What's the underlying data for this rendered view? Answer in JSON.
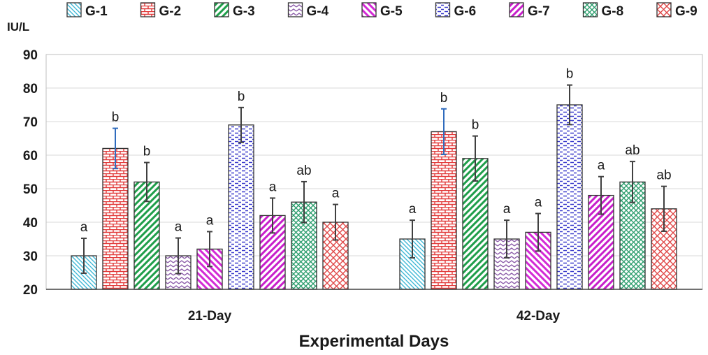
{
  "chart_data": {
    "type": "bar",
    "title": "",
    "ylabel": "IU/L",
    "xlabel": "Experimental Days",
    "ylim": [
      20,
      90
    ],
    "yticks": [
      20,
      30,
      40,
      50,
      60,
      70,
      80,
      90
    ],
    "grid": true,
    "legend_position": "top",
    "categories": [
      "21-Day",
      "42-Day"
    ],
    "series": [
      {
        "name": "G-1",
        "color": "#3fb8d6",
        "pattern": "diag-down",
        "values": [
          30,
          35
        ],
        "errors": [
          5.2,
          5.6
        ],
        "letters": [
          "a",
          "a"
        ],
        "error_color": "#404040"
      },
      {
        "name": "G-2",
        "color": "#e23a3a",
        "pattern": "brick",
        "values": [
          62,
          67
        ],
        "errors": [
          6,
          6.8
        ],
        "letters": [
          "b",
          "b"
        ],
        "error_color": "#2f6bbd"
      },
      {
        "name": "G-3",
        "color": "#1f9e4a",
        "pattern": "wide-up",
        "values": [
          52,
          59
        ],
        "errors": [
          5.8,
          6.7
        ],
        "letters": [
          "b",
          "b"
        ],
        "error_color": "#404040"
      },
      {
        "name": "G-4",
        "color": "#8a5aa8",
        "pattern": "zigzag",
        "values": [
          30,
          35
        ],
        "errors": [
          5.3,
          5.6
        ],
        "letters": [
          "a",
          "a"
        ],
        "error_color": "#404040"
      },
      {
        "name": "G-5",
        "color": "#d42ad6",
        "pattern": "wide-down",
        "values": [
          32,
          37
        ],
        "errors": [
          5.2,
          5.6
        ],
        "letters": [
          "a",
          "a"
        ],
        "error_color": "#404040"
      },
      {
        "name": "G-6",
        "color": "#3a3acb",
        "pattern": "dash-h",
        "values": [
          69,
          75
        ],
        "errors": [
          5.2,
          5.9
        ],
        "letters": [
          "b",
          "b"
        ],
        "error_color": "#404040"
      },
      {
        "name": "G-7",
        "color": "#c81ecb",
        "pattern": "wide-up",
        "values": [
          42,
          48
        ],
        "errors": [
          5.2,
          5.6
        ],
        "letters": [
          "a",
          "a"
        ],
        "error_color": "#404040"
      },
      {
        "name": "G-8",
        "color": "#2e9e6e",
        "pattern": "cross",
        "values": [
          46,
          52
        ],
        "errors": [
          6.1,
          6.1
        ],
        "letters": [
          "ab",
          "ab"
        ],
        "error_color": "#404040"
      },
      {
        "name": "G-9",
        "color": "#e04848",
        "pattern": "cross-diag",
        "values": [
          40,
          44
        ],
        "errors": [
          5.3,
          6.7
        ],
        "letters": [
          "a",
          "ab"
        ],
        "error_color": "#404040"
      }
    ]
  }
}
